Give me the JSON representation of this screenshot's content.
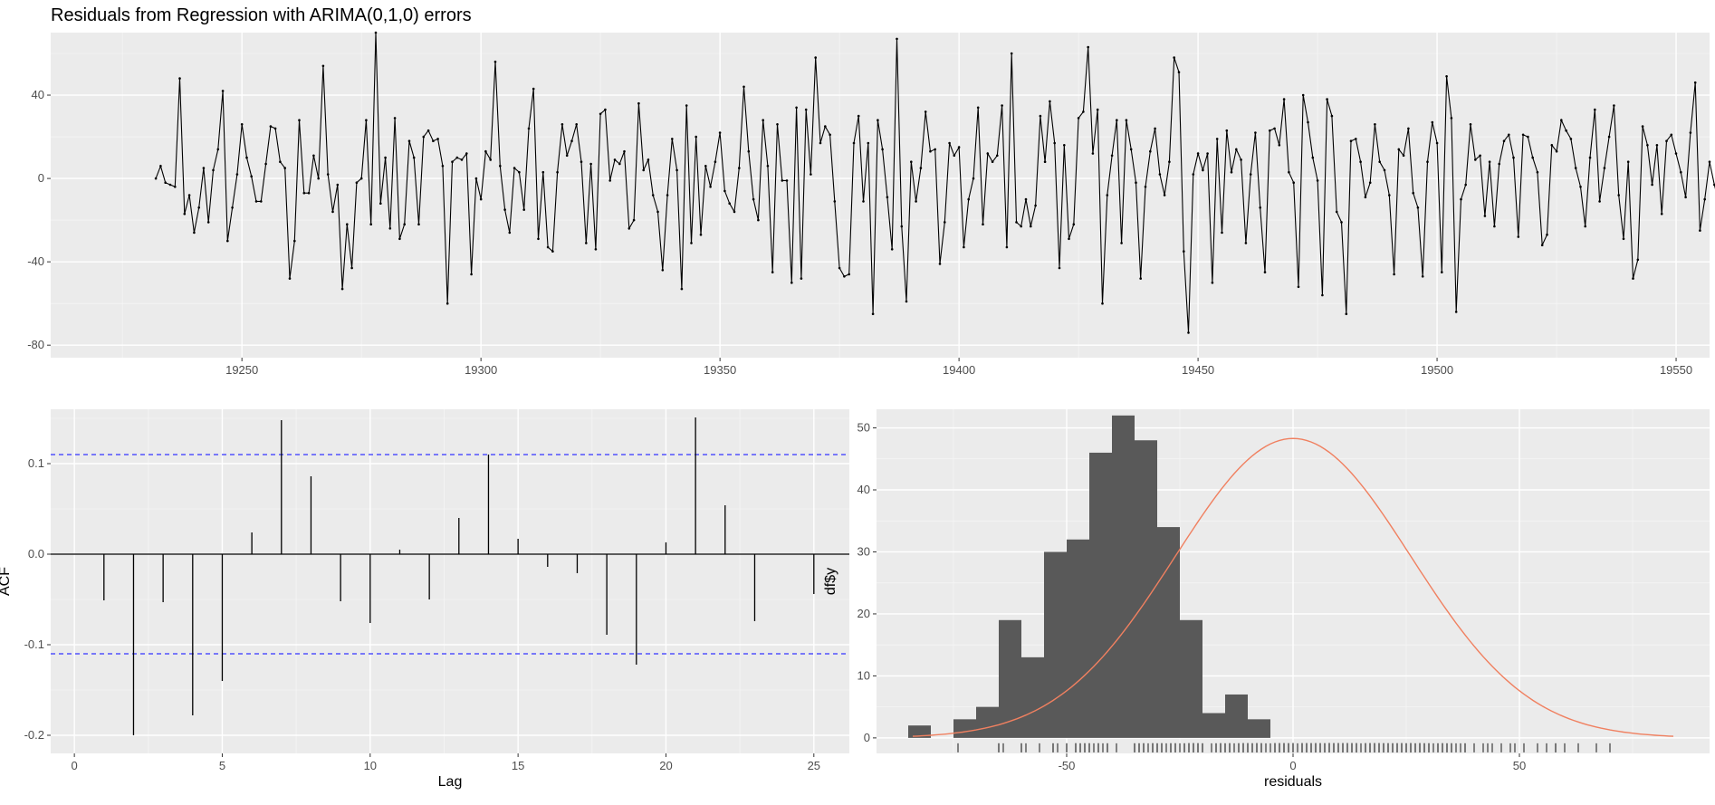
{
  "page_title": "Residuals from Regression with ARIMA(0,1,0) errors",
  "chart_data": [
    {
      "type": "line",
      "xlabel": "",
      "ylabel": "",
      "xlim": [
        19210,
        19557
      ],
      "ylim": [
        -86,
        70
      ],
      "x_ticks": [
        19250,
        19300,
        19350,
        19400,
        19450,
        19500,
        19550
      ],
      "y_ticks": [
        -80,
        -40,
        0,
        40
      ],
      "grid": true,
      "x_start": 19232,
      "values": [
        0,
        6,
        -2,
        -3,
        -4,
        48,
        -17,
        -8,
        -26,
        -14,
        5,
        -21,
        4,
        14,
        42,
        -30,
        -14,
        2,
        26,
        10,
        1,
        -11,
        -11,
        7,
        25,
        24,
        8,
        5,
        -48,
        -30,
        28,
        -7,
        -7,
        11,
        0,
        54,
        2,
        -16,
        -3,
        -53,
        -22,
        -43,
        -2,
        0,
        28,
        -22,
        70,
        -12,
        10,
        -24,
        29,
        -29,
        -22,
        18,
        10,
        -22,
        20,
        23,
        18,
        19,
        6,
        -60,
        8,
        10,
        9,
        12,
        -46,
        0,
        -10,
        13,
        9,
        56,
        6,
        -15,
        -26,
        5,
        3,
        -15,
        24,
        43,
        -29,
        3,
        -33,
        -35,
        3,
        26,
        11,
        18,
        26,
        8,
        -31,
        7,
        -34,
        31,
        33,
        -1,
        9,
        7,
        13,
        -24,
        -20,
        36,
        4,
        9,
        -8,
        -16,
        -44,
        -8,
        19,
        4,
        -53,
        35,
        -31,
        20,
        -27,
        6,
        -4,
        8,
        22,
        -6,
        -12,
        -16,
        5,
        44,
        13,
        -10,
        -20,
        28,
        6,
        -45,
        26,
        -1,
        -1,
        -50,
        34,
        -48,
        33,
        2,
        58,
        17,
        25,
        21,
        -11,
        -43,
        -47,
        -46,
        17,
        30,
        -11,
        17,
        -65,
        28,
        14,
        -9,
        -34,
        67,
        -23,
        -59,
        8,
        -11,
        5,
        32,
        13,
        14,
        -41,
        -21,
        17,
        11,
        15,
        -33,
        -10,
        0,
        34,
        -22,
        12,
        8,
        11,
        35,
        -33,
        60,
        -21,
        -23,
        -10,
        -23,
        -13,
        30,
        8,
        37,
        17,
        -43,
        16,
        -29,
        -22,
        29,
        32,
        63,
        12,
        33,
        -60,
        -8,
        11,
        28,
        -31,
        28,
        14,
        -2,
        -48,
        -4,
        13,
        24,
        2,
        -8,
        8,
        58,
        51,
        -35,
        -74,
        2,
        12,
        4,
        12,
        -50,
        19,
        -26,
        23,
        3,
        14,
        9,
        -31,
        2,
        22,
        -14,
        -45,
        23,
        24,
        16,
        38,
        3,
        -2,
        -52,
        40,
        27,
        10,
        -1,
        -56,
        38,
        30,
        -16,
        -21,
        -65,
        18,
        19,
        8,
        -9,
        -2,
        26,
        8,
        4,
        -8,
        -46,
        14,
        11,
        24,
        -7,
        -14,
        -47,
        8,
        27,
        17,
        -45,
        49,
        29,
        -64,
        -10,
        -3,
        26,
        9,
        11,
        -18,
        8,
        -23,
        7,
        18,
        21,
        10,
        -28,
        21,
        20,
        10,
        3,
        -32,
        -27,
        16,
        13,
        28,
        23,
        19,
        5,
        -4,
        -23,
        10,
        33,
        -11,
        5,
        20,
        35,
        -8,
        -29,
        8,
        -48,
        -39,
        25,
        16,
        -3,
        16,
        -17,
        18,
        21,
        12,
        3,
        -9,
        22,
        46,
        -25,
        -10,
        8,
        -3,
        -12,
        12,
        -4,
        18,
        12,
        -4,
        -22,
        19,
        8,
        0,
        -4,
        -7,
        8,
        26,
        -2,
        -11,
        -3,
        -41,
        -27,
        -5,
        24,
        26,
        0,
        -42
      ]
    },
    {
      "type": "bar",
      "xlabel": "Lag",
      "ylabel": "ACF",
      "xlim": [
        -0.8,
        26.2
      ],
      "ylim": [
        -0.22,
        0.16
      ],
      "x_ticks": [
        0,
        5,
        10,
        15,
        20,
        25
      ],
      "y_ticks": [
        -0.2,
        -0.1,
        0.0,
        0.1
      ],
      "y_tick_labels": [
        "-0.2",
        "-0.1",
        "0.0",
        "0.1"
      ],
      "grid": true,
      "ci": 0.11,
      "lags": [
        1,
        2,
        3,
        4,
        5,
        6,
        7,
        8,
        9,
        10,
        11,
        12,
        13,
        14,
        15,
        16,
        17,
        18,
        19,
        20,
        21,
        22,
        23,
        24,
        25
      ],
      "values": [
        -0.051,
        -0.2,
        -0.053,
        -0.178,
        -0.14,
        0.024,
        0.148,
        0.086,
        -0.052,
        -0.076,
        0.005,
        -0.05,
        0.04,
        0.11,
        0.017,
        -0.014,
        -0.021,
        -0.089,
        -0.122,
        0.013,
        0.151,
        0.054,
        -0.074,
        0,
        -0.044
      ],
      "colors": {
        "ci": "#3333ff",
        "bar": "#000000"
      }
    },
    {
      "type": "histogram",
      "xlabel": "residuals",
      "ylabel": "df$y",
      "xlim": [
        -92,
        92
      ],
      "ylim": [
        -2.5,
        53
      ],
      "x_ticks": [
        -50,
        0,
        50
      ],
      "y_ticks": [
        0,
        10,
        20,
        30,
        40,
        50
      ],
      "grid": true,
      "bins": [
        {
          "start": -85,
          "end": -80,
          "count": 2
        },
        {
          "start": -75,
          "end": -70,
          "count": 3
        },
        {
          "start": -70,
          "end": -65,
          "count": 5
        },
        {
          "start": -65,
          "end": -60,
          "count": 19
        },
        {
          "start": -60,
          "end": -55,
          "count": 13
        },
        {
          "start": -55,
          "end": -50,
          "count": 30
        },
        {
          "start": -50,
          "end": -45,
          "count": 32
        },
        {
          "start": -45,
          "end": -40,
          "count": 46
        },
        {
          "start": -40,
          "end": -35,
          "count": 52
        },
        {
          "start": -35,
          "end": -30,
          "count": 48
        },
        {
          "start": -30,
          "end": -25,
          "count": 34
        },
        {
          "start": -25,
          "end": -20,
          "count": 19
        },
        {
          "start": -20,
          "end": -15,
          "count": 4
        },
        {
          "start": -15,
          "end": -10,
          "count": 7
        },
        {
          "start": -10,
          "end": -5,
          "count": 3
        }
      ],
      "normal_curve": {
        "mean": 0,
        "sd": 26,
        "peak": 48.3,
        "range": [
          -84,
          84
        ]
      },
      "colors": {
        "bar": "#595959",
        "curve": "#f08060"
      }
    }
  ]
}
